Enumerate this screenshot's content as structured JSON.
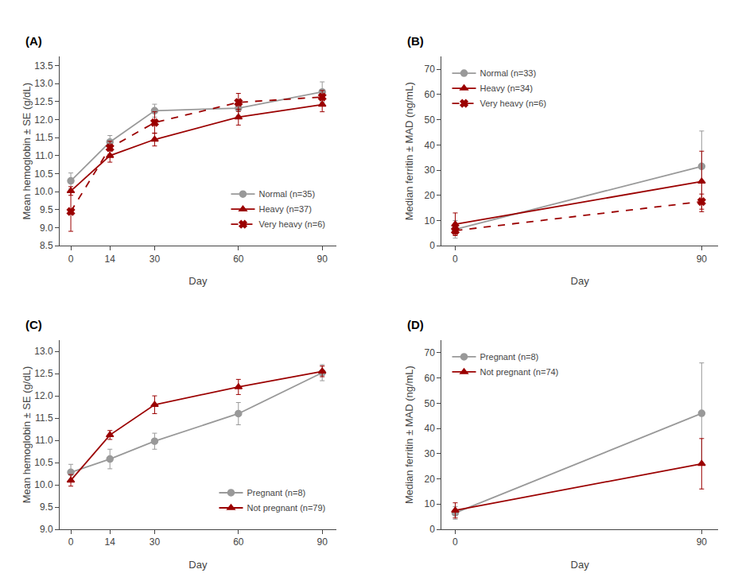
{
  "chart_data": [
    {
      "type": "line",
      "title": "(A)",
      "x_label": "Day",
      "y_label": "Mean hemoglobin ± SE (g/dL)",
      "xlim": [
        -4,
        95
      ],
      "xticks": [
        0,
        14,
        30,
        60,
        90
      ],
      "ylim": [
        8.5,
        13.75
      ],
      "yticks": [
        8.5,
        {
          "value": 9.0,
          "label": "9.0"
        },
        9.5,
        {
          "value": 10.0,
          "label": "10.0"
        },
        10.5,
        {
          "value": 11.0,
          "label": "11.0"
        },
        11.5,
        {
          "value": 12.0,
          "label": "12.0"
        },
        12.5,
        {
          "value": 13.0,
          "label": "13.0"
        },
        13.5
      ],
      "grid": false,
      "legend": "lower right",
      "x": [
        0,
        14,
        30,
        60,
        90
      ],
      "series": [
        {
          "name": "Normal (n=35)",
          "color": "#999999",
          "marker": "circle",
          "line_style": "solid",
          "values": [
            10.3,
            11.38,
            12.25,
            12.32,
            12.77
          ],
          "yerr": [
            0.22,
            0.18,
            0.18,
            0.2,
            0.28
          ]
        },
        {
          "name": "Heavy (n=37)",
          "color": "#9B0000",
          "marker": "triangle-up",
          "line_style": "solid",
          "values": [
            10.02,
            11.0,
            11.45,
            12.07,
            12.42
          ],
          "yerr": [
            0.12,
            0.18,
            0.18,
            0.22,
            0.2
          ]
        },
        {
          "name": "Very heavy (n=6)",
          "color": "#9B0000",
          "marker": "x",
          "line_style": "dashed",
          "values": [
            9.45,
            11.22,
            11.92,
            12.48,
            12.63
          ],
          "yerr": [
            0.55,
            0.18,
            0.3,
            0.25,
            0.18
          ]
        }
      ]
    },
    {
      "type": "line",
      "title": "(B)",
      "x_label": "Day",
      "y_label": "Median ferritin ± MAD (ng/mL)",
      "xlim": [
        -5,
        96
      ],
      "xticks": [
        0,
        90
      ],
      "ylim": [
        0,
        75
      ],
      "yticks": [
        0,
        10,
        20,
        30,
        40,
        50,
        60,
        70
      ],
      "grid": false,
      "legend": "upper left",
      "x": [
        0,
        90
      ],
      "series": [
        {
          "name": "Normal (n=33)",
          "color": "#999999",
          "marker": "circle",
          "line_style": "solid",
          "values": [
            6.5,
            31.5
          ],
          "yerr": [
            3.5,
            14.0
          ]
        },
        {
          "name": "Heavy (n=34)",
          "color": "#9B0000",
          "marker": "triangle-up",
          "line_style": "solid",
          "values": [
            8.5,
            25.5
          ],
          "yerr": [
            4.5,
            12.0
          ]
        },
        {
          "name": "Very heavy (n=6)",
          "color": "#9B0000",
          "marker": "x",
          "line_style": "dashed",
          "values": [
            6.0,
            17.5
          ],
          "yerr": [
            1.5,
            3.0
          ]
        }
      ]
    },
    {
      "type": "line",
      "title": "(C)",
      "x_label": "Day",
      "y_label": "Mean hemoglobin ± SE (g/dL)",
      "xlim": [
        -4,
        95
      ],
      "xticks": [
        0,
        14,
        30,
        60,
        90
      ],
      "ylim": [
        9.0,
        13.25
      ],
      "yticks": [
        {
          "value": 9.0,
          "label": "9.0"
        },
        9.5,
        {
          "value": 10.0,
          "label": "10.0"
        },
        10.5,
        {
          "value": 11.0,
          "label": "11.0"
        },
        11.5,
        {
          "value": 12.0,
          "label": "12.0"
        },
        12.5,
        {
          "value": 13.0,
          "label": "13.0"
        }
      ],
      "grid": false,
      "legend": "lower right",
      "x": [
        0,
        14,
        30,
        60,
        90
      ],
      "series": [
        {
          "name": "Pregnant (n=8)",
          "color": "#999999",
          "marker": "circle",
          "line_style": "solid",
          "values": [
            10.28,
            10.58,
            10.98,
            11.6,
            12.52
          ],
          "yerr": [
            0.18,
            0.22,
            0.18,
            0.25,
            0.18
          ]
        },
        {
          "name": "Not pregnant (n=79)",
          "color": "#9B0000",
          "marker": "triangle-up",
          "line_style": "solid",
          "values": [
            10.1,
            11.12,
            11.8,
            12.2,
            12.55
          ],
          "yerr": [
            0.13,
            0.1,
            0.2,
            0.17,
            0.12
          ]
        }
      ]
    },
    {
      "type": "line",
      "title": "(D)",
      "x_label": "Day",
      "y_label": "Median ferritin ± MAD (ng/mL)",
      "xlim": [
        -5,
        96
      ],
      "xticks": [
        0,
        90
      ],
      "ylim": [
        0,
        75
      ],
      "yticks": [
        0,
        10,
        20,
        30,
        40,
        50,
        60,
        70
      ],
      "grid": false,
      "legend": "upper left",
      "x": [
        0,
        90
      ],
      "series": [
        {
          "name": "Pregnant (n=8)",
          "color": "#999999",
          "marker": "circle",
          "line_style": "solid",
          "values": [
            6.5,
            46.0
          ],
          "yerr": [
            2.5,
            20.0
          ]
        },
        {
          "name": "Not pregnant (n=74)",
          "color": "#9B0000",
          "marker": "triangle-up",
          "line_style": "solid",
          "values": [
            7.5,
            26.0
          ],
          "yerr": [
            3.0,
            10.0
          ]
        }
      ]
    }
  ]
}
